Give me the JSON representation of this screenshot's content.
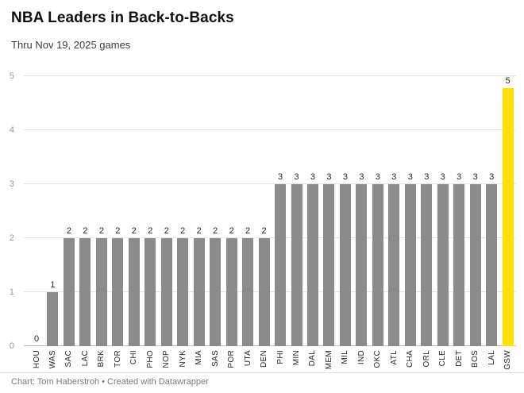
{
  "header": {
    "title": "NBA Leaders in Back-to-Backs",
    "subtitle": "Thru Nov 19, 2025 games"
  },
  "chart_data": {
    "type": "bar",
    "title": "NBA Leaders in Back-to-Backs",
    "subtitle": "Thru Nov 19, 2025 games",
    "categories": [
      "HOU",
      "WAS",
      "SAC",
      "LAC",
      "BRK",
      "TOR",
      "CHI",
      "PHO",
      "NOP",
      "NYK",
      "MIA",
      "SAS",
      "POR",
      "UTA",
      "DEN",
      "PHI",
      "MIN",
      "DAL",
      "MEM",
      "MIL",
      "IND",
      "OKC",
      "ATL",
      "CHA",
      "ORL",
      "CLE",
      "DET",
      "BOS",
      "LAL",
      "GSW"
    ],
    "values": [
      0,
      1,
      2,
      2,
      2,
      2,
      2,
      2,
      2,
      2,
      2,
      2,
      2,
      2,
      2,
      3,
      3,
      3,
      3,
      3,
      3,
      3,
      3,
      3,
      3,
      3,
      3,
      3,
      3,
      5
    ],
    "xlabel": "",
    "ylabel": "",
    "ylim": [
      0,
      5
    ],
    "yticks": [
      0,
      1,
      2,
      3,
      4,
      5
    ],
    "grid": true,
    "value_labels": true,
    "bar_color": "#8b8b8b",
    "highlight": {
      "category": "GSW",
      "color": "#ffe000"
    },
    "legend": "none"
  },
  "footer": {
    "credit": "Chart: Tom Haberstroh • Created with Datawrapper"
  }
}
